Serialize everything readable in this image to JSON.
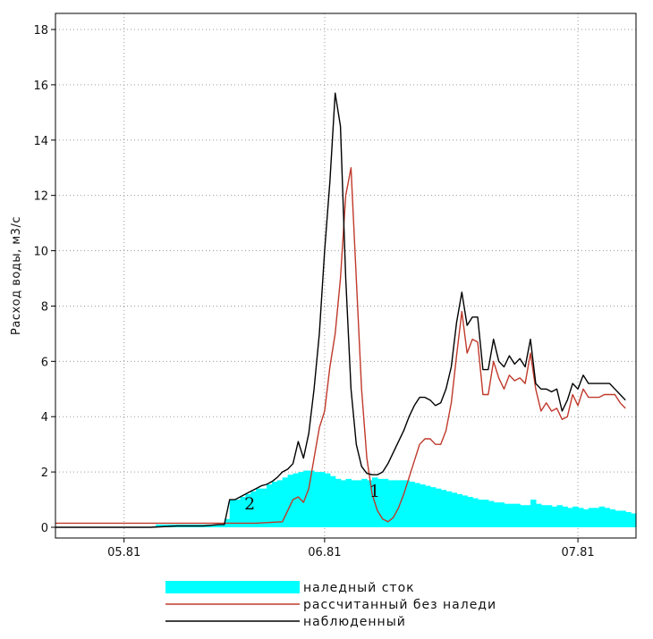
{
  "chart_data": {
    "type": "area",
    "ylabel": "Расход воды, м3/с",
    "xlabel": "",
    "x_ticks": [
      "05.81",
      "06.81",
      "07.81"
    ],
    "ylim": [
      0,
      18
    ],
    "y_ticks": [
      0,
      2,
      4,
      6,
      8,
      10,
      12,
      14,
      16,
      18
    ],
    "grid": true,
    "legend_position": "bottom",
    "annotations": [
      {
        "text": "1",
        "target": "рассчитанный без наледи"
      },
      {
        "text": "2",
        "target": "наледный сток"
      }
    ],
    "series": [
      {
        "name": "наледный сток",
        "style": "filled-area",
        "color": "#00ffff",
        "points": [
          [
            0,
            0
          ],
          [
            5,
            0
          ],
          [
            6,
            0.1
          ],
          [
            18,
            0.1
          ],
          [
            19,
            0.3
          ],
          [
            20,
            1.0
          ],
          [
            21,
            1.0
          ],
          [
            22,
            1.1
          ],
          [
            23,
            1.2
          ],
          [
            24,
            1.3
          ],
          [
            25,
            1.4
          ],
          [
            26,
            1.4
          ],
          [
            27,
            1.55
          ],
          [
            28,
            1.65
          ],
          [
            29,
            1.7
          ],
          [
            30,
            1.8
          ],
          [
            31,
            1.9
          ],
          [
            32,
            1.95
          ],
          [
            33,
            2.0
          ],
          [
            34,
            2.05
          ],
          [
            35,
            2.05
          ],
          [
            36,
            2.0
          ],
          [
            37,
            2.0
          ],
          [
            38,
            1.95
          ],
          [
            39,
            1.85
          ],
          [
            40,
            1.75
          ],
          [
            41,
            1.7
          ],
          [
            42,
            1.75
          ],
          [
            43,
            1.7
          ],
          [
            44,
            1.7
          ],
          [
            45,
            1.75
          ],
          [
            46,
            1.7
          ],
          [
            47,
            1.8
          ],
          [
            48,
            1.75
          ],
          [
            49,
            1.75
          ],
          [
            50,
            1.7
          ],
          [
            51,
            1.7
          ],
          [
            52,
            1.7
          ],
          [
            53,
            1.7
          ],
          [
            54,
            1.65
          ],
          [
            55,
            1.6
          ],
          [
            56,
            1.55
          ],
          [
            57,
            1.5
          ],
          [
            58,
            1.45
          ],
          [
            59,
            1.4
          ],
          [
            60,
            1.35
          ],
          [
            61,
            1.3
          ],
          [
            62,
            1.25
          ],
          [
            63,
            1.2
          ],
          [
            64,
            1.15
          ],
          [
            65,
            1.1
          ],
          [
            66,
            1.05
          ],
          [
            67,
            1.0
          ],
          [
            68,
            1.0
          ],
          [
            69,
            0.95
          ],
          [
            70,
            0.9
          ],
          [
            71,
            0.9
          ],
          [
            72,
            0.85
          ],
          [
            73,
            0.85
          ],
          [
            74,
            0.85
          ],
          [
            75,
            0.8
          ],
          [
            76,
            0.8
          ],
          [
            77,
            1.0
          ],
          [
            78,
            0.85
          ],
          [
            79,
            0.8
          ],
          [
            80,
            0.8
          ],
          [
            81,
            0.75
          ],
          [
            82,
            0.8
          ],
          [
            83,
            0.75
          ],
          [
            84,
            0.7
          ],
          [
            85,
            0.75
          ],
          [
            86,
            0.7
          ],
          [
            87,
            0.65
          ],
          [
            88,
            0.7
          ],
          [
            89,
            0.7
          ],
          [
            90,
            0.75
          ],
          [
            91,
            0.7
          ],
          [
            92,
            0.65
          ],
          [
            93,
            0.6
          ],
          [
            94,
            0.6
          ],
          [
            95,
            0.55
          ],
          [
            96,
            0.5
          ],
          [
            97,
            0.5
          ]
        ]
      },
      {
        "name": "рассчитанный без наледи",
        "style": "line",
        "color": "#c0392b",
        "points": [
          [
            -13,
            0.15
          ],
          [
            0,
            0.15
          ],
          [
            5,
            0.15
          ],
          [
            15,
            0.15
          ],
          [
            18,
            0.15
          ],
          [
            20,
            0.15
          ],
          [
            25,
            0.15
          ],
          [
            30,
            0.2
          ],
          [
            31,
            0.6
          ],
          [
            32,
            1.0
          ],
          [
            33,
            1.1
          ],
          [
            34,
            0.9
          ],
          [
            35,
            1.4
          ],
          [
            36,
            2.5
          ],
          [
            37,
            3.6
          ],
          [
            38,
            4.2
          ],
          [
            39,
            5.8
          ],
          [
            40,
            7.0
          ],
          [
            41,
            9.0
          ],
          [
            42,
            12.0
          ],
          [
            43,
            13.0
          ],
          [
            44,
            9.0
          ],
          [
            45,
            5.0
          ],
          [
            46,
            2.5
          ],
          [
            47,
            1.2
          ],
          [
            48,
            0.6
          ],
          [
            49,
            0.3
          ],
          [
            50,
            0.2
          ],
          [
            51,
            0.35
          ],
          [
            52,
            0.7
          ],
          [
            53,
            1.2
          ],
          [
            54,
            1.8
          ],
          [
            55,
            2.4
          ],
          [
            56,
            3.0
          ],
          [
            57,
            3.2
          ],
          [
            58,
            3.2
          ],
          [
            59,
            3.0
          ],
          [
            60,
            3.0
          ],
          [
            61,
            3.5
          ],
          [
            62,
            4.5
          ],
          [
            63,
            6.2
          ],
          [
            64,
            7.8
          ],
          [
            65,
            6.3
          ],
          [
            66,
            6.8
          ],
          [
            67,
            6.7
          ],
          [
            68,
            4.8
          ],
          [
            69,
            4.8
          ],
          [
            70,
            6.0
          ],
          [
            71,
            5.4
          ],
          [
            72,
            5.0
          ],
          [
            73,
            5.5
          ],
          [
            74,
            5.3
          ],
          [
            75,
            5.4
          ],
          [
            76,
            5.2
          ],
          [
            77,
            6.3
          ],
          [
            78,
            5.0
          ],
          [
            79,
            4.2
          ],
          [
            80,
            4.5
          ],
          [
            81,
            4.2
          ],
          [
            82,
            4.3
          ],
          [
            83,
            3.9
          ],
          [
            84,
            4.0
          ],
          [
            85,
            4.8
          ],
          [
            86,
            4.4
          ],
          [
            87,
            5.0
          ],
          [
            88,
            4.7
          ],
          [
            89,
            4.7
          ],
          [
            90,
            4.7
          ],
          [
            91,
            4.8
          ],
          [
            92,
            4.8
          ],
          [
            93,
            4.8
          ],
          [
            94,
            4.5
          ],
          [
            95,
            4.3
          ]
        ]
      },
      {
        "name": "наблюденный",
        "style": "line",
        "color": "#000000",
        "points": [
          [
            -13,
            0.0
          ],
          [
            0,
            0.0
          ],
          [
            5,
            0.0
          ],
          [
            10,
            0.05
          ],
          [
            13,
            0.05
          ],
          [
            15,
            0.05
          ],
          [
            18,
            0.1
          ],
          [
            19,
            0.1
          ],
          [
            20,
            1.0
          ],
          [
            21,
            1.0
          ],
          [
            22,
            1.1
          ],
          [
            23,
            1.2
          ],
          [
            24,
            1.3
          ],
          [
            25,
            1.4
          ],
          [
            26,
            1.5
          ],
          [
            27,
            1.55
          ],
          [
            28,
            1.65
          ],
          [
            29,
            1.8
          ],
          [
            30,
            2.0
          ],
          [
            31,
            2.1
          ],
          [
            32,
            2.3
          ],
          [
            33,
            3.1
          ],
          [
            34,
            2.5
          ],
          [
            35,
            3.4
          ],
          [
            36,
            5.0
          ],
          [
            37,
            7.0
          ],
          [
            38,
            10.0
          ],
          [
            39,
            12.5
          ],
          [
            40,
            15.7
          ],
          [
            41,
            14.5
          ],
          [
            42,
            9.0
          ],
          [
            43,
            5.0
          ],
          [
            44,
            3.0
          ],
          [
            45,
            2.2
          ],
          [
            46,
            1.95
          ],
          [
            47,
            1.9
          ],
          [
            48,
            1.9
          ],
          [
            49,
            2.0
          ],
          [
            50,
            2.3
          ],
          [
            51,
            2.7
          ],
          [
            52,
            3.1
          ],
          [
            53,
            3.5
          ],
          [
            54,
            4.0
          ],
          [
            55,
            4.4
          ],
          [
            56,
            4.7
          ],
          [
            57,
            4.7
          ],
          [
            58,
            4.6
          ],
          [
            59,
            4.4
          ],
          [
            60,
            4.5
          ],
          [
            61,
            5.0
          ],
          [
            62,
            5.8
          ],
          [
            63,
            7.4
          ],
          [
            64,
            8.5
          ],
          [
            65,
            7.3
          ],
          [
            66,
            7.6
          ],
          [
            67,
            7.6
          ],
          [
            68,
            5.7
          ],
          [
            69,
            5.7
          ],
          [
            70,
            6.8
          ],
          [
            71,
            6.0
          ],
          [
            72,
            5.8
          ],
          [
            73,
            6.2
          ],
          [
            74,
            5.9
          ],
          [
            75,
            6.1
          ],
          [
            76,
            5.8
          ],
          [
            77,
            6.8
          ],
          [
            78,
            5.2
          ],
          [
            79,
            5.0
          ],
          [
            80,
            5.0
          ],
          [
            81,
            4.9
          ],
          [
            82,
            5.0
          ],
          [
            83,
            4.2
          ],
          [
            84,
            4.6
          ],
          [
            85,
            5.2
          ],
          [
            86,
            5.0
          ],
          [
            87,
            5.5
          ],
          [
            88,
            5.2
          ],
          [
            89,
            5.2
          ],
          [
            90,
            5.2
          ],
          [
            91,
            5.2
          ],
          [
            92,
            5.2
          ],
          [
            93,
            5.0
          ],
          [
            94,
            4.8
          ],
          [
            95,
            4.6
          ]
        ]
      }
    ]
  },
  "legend": {
    "items": [
      {
        "label": "наледный сток",
        "color": "#00ffff",
        "kind": "area"
      },
      {
        "label": "рассчитанный без наледи",
        "color": "#c0392b",
        "kind": "line"
      },
      {
        "label": "наблюденный",
        "color": "#000000",
        "kind": "line"
      }
    ]
  }
}
